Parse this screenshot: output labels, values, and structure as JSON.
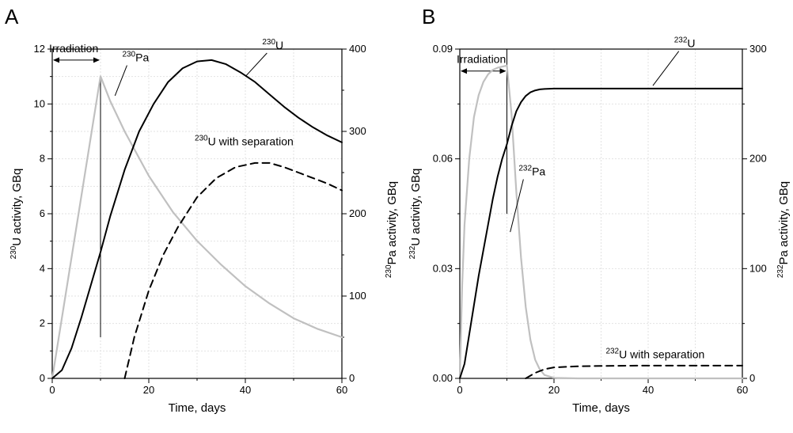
{
  "chart_data": [
    {
      "panel_label": "A",
      "type": "line",
      "xlabel": "Time, days",
      "ylabel": {
        "sup": "230",
        "text": "U activity, GBq"
      },
      "y2label": {
        "sup": "230",
        "text": "Pa activity, GBq"
      },
      "xlim": [
        0,
        60
      ],
      "ylim": [
        0,
        12
      ],
      "y2lim": [
        0,
        400
      ],
      "x_ticks": [
        0,
        20,
        40,
        60
      ],
      "y_ticks": [
        0,
        2,
        4,
        6,
        8,
        10,
        12
      ],
      "y2_ticks": [
        0,
        100,
        200,
        300,
        400
      ],
      "grid": true,
      "series": [
        {
          "axis": "right",
          "color": "#c0c0c0",
          "style": "solid",
          "x": [
            0,
            10,
            12,
            15,
            20,
            25,
            30,
            35,
            40,
            45,
            50,
            55,
            60
          ],
          "y": [
            0,
            367,
            337,
            300,
            246,
            202,
            167,
            138,
            112,
            91,
            73,
            60,
            50
          ]
        },
        {
          "axis": "left",
          "color": "#000000",
          "style": "solid",
          "x": [
            0,
            2,
            4,
            6,
            8,
            10,
            12,
            15,
            18,
            21,
            24,
            27,
            30,
            33,
            36,
            39,
            42,
            45,
            48,
            51,
            54,
            57,
            60
          ],
          "y": [
            0,
            0.3,
            1.1,
            2.2,
            3.4,
            4.6,
            5.9,
            7.6,
            9.0,
            10.0,
            10.8,
            11.3,
            11.55,
            11.6,
            11.45,
            11.15,
            10.8,
            10.35,
            9.9,
            9.5,
            9.15,
            8.85,
            8.6
          ]
        },
        {
          "axis": "left",
          "color": "#000000",
          "style": "dashed",
          "x": [
            15,
            17,
            20,
            23,
            26,
            30,
            34,
            38,
            42,
            45,
            48,
            51,
            54,
            57,
            60
          ],
          "y": [
            0,
            1.5,
            3.2,
            4.5,
            5.5,
            6.6,
            7.3,
            7.7,
            7.85,
            7.85,
            7.7,
            7.5,
            7.3,
            7.1,
            6.85
          ]
        }
      ],
      "irradiation": {
        "label": "Irradiation",
        "from": 0,
        "to": 10,
        "y": 11.6,
        "marker_x": 10,
        "marker_y_top": 11.0,
        "marker_y_bottom": 1.5
      },
      "annotations": [
        {
          "sup": "230",
          "text": "Pa",
          "x": 14.5,
          "y": 11.55,
          "line_to": [
            13,
            10.3
          ]
        },
        {
          "sup": "230",
          "text": "U",
          "x": 43.5,
          "y": 12.0,
          "line_to": [
            40,
            11.0
          ]
        },
        {
          "sup": "230",
          "text": "U with separation",
          "x": 29.5,
          "y": 8.5,
          "line_to": null
        }
      ]
    },
    {
      "panel_label": "B",
      "type": "line",
      "xlabel": "Time, days",
      "ylabel": {
        "sup": "232",
        "text": "U activity, GBq"
      },
      "y2label": {
        "sup": "232",
        "text": "Pa activity, GBq"
      },
      "xlim": [
        0,
        60
      ],
      "ylim": [
        0,
        0.09
      ],
      "y2lim": [
        0,
        300
      ],
      "x_ticks": [
        0,
        20,
        40,
        60
      ],
      "y_ticks": [
        "0.00",
        "0.03",
        "0.06",
        "0.09"
      ],
      "y2_ticks": [
        0,
        100,
        200,
        300
      ],
      "grid": true,
      "series": [
        {
          "axis": "right",
          "color": "#c0c0c0",
          "style": "solid",
          "x": [
            0,
            0.5,
            1,
            2,
            3,
            4,
            5,
            6,
            7,
            8,
            9,
            10,
            11,
            12,
            13,
            14,
            15,
            16,
            17,
            18,
            20,
            25,
            30,
            40,
            60
          ],
          "y": [
            0,
            85,
            140,
            200,
            238,
            258,
            270,
            277,
            281,
            283,
            284,
            285,
            240,
            170,
            110,
            65,
            35,
            17,
            8,
            3,
            0.5,
            0,
            0,
            0,
            0
          ]
        },
        {
          "axis": "left",
          "color": "#000000",
          "style": "solid",
          "x": [
            0,
            1,
            2,
            3,
            4,
            5,
            6,
            7,
            8,
            9,
            10,
            11,
            12,
            13,
            14,
            15,
            16,
            17,
            18,
            20,
            25,
            30,
            40,
            60
          ],
          "y": [
            0,
            0.004,
            0.012,
            0.02,
            0.028,
            0.035,
            0.042,
            0.049,
            0.055,
            0.06,
            0.064,
            0.069,
            0.073,
            0.0755,
            0.0772,
            0.0782,
            0.0787,
            0.079,
            0.0791,
            0.0792,
            0.0792,
            0.0792,
            0.0792,
            0.0792
          ]
        },
        {
          "axis": "left",
          "color": "#000000",
          "style": "dashed",
          "x": [
            14,
            16,
            18,
            20,
            25,
            30,
            40,
            50,
            60
          ],
          "y": [
            0,
            0.0015,
            0.0025,
            0.003,
            0.0033,
            0.0034,
            0.0035,
            0.0035,
            0.0035
          ]
        }
      ],
      "irradiation": {
        "label": "Irradiation",
        "from": 0,
        "to": 10,
        "y": 0.084,
        "marker_x": 10,
        "marker_y_top": 0.09,
        "marker_y_bottom": 0.045
      },
      "annotations": [
        {
          "sup": "232",
          "text": "Pa",
          "x": 12.5,
          "y": 0.0555,
          "line_to": [
            10.7,
            0.04
          ]
        },
        {
          "sup": "232",
          "text": "U",
          "x": 45.5,
          "y": 0.0905,
          "line_to": [
            41,
            0.08
          ]
        },
        {
          "sup": "232",
          "text": "U with separation",
          "x": 31,
          "y": 0.0055,
          "line_to": null
        }
      ]
    }
  ]
}
